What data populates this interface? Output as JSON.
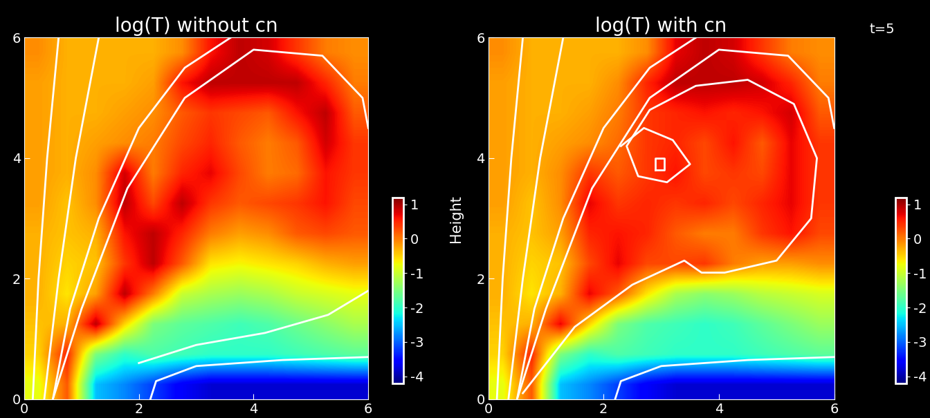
{
  "chart_data": [
    {
      "type": "heatmap",
      "title": "log(T) without cn",
      "x_centers": [
        0.25,
        0.75,
        1.25,
        1.75,
        2.25,
        2.75,
        3.25,
        3.75,
        4.25,
        4.75,
        5.25,
        5.75
      ],
      "y_centers": [
        0.25,
        0.75,
        1.25,
        1.75,
        2.25,
        2.75,
        3.25,
        3.75,
        4.25,
        4.75,
        5.25,
        5.75
      ],
      "cells": [
        [
          -0.8,
          0.2,
          -2.5,
          -2.8,
          -3.2,
          -3.6,
          -3.8,
          -3.8,
          -3.8,
          -3.8,
          -3.8,
          -3.8
        ],
        [
          -0.5,
          0.5,
          -1.5,
          -2.0,
          -1.8,
          -1.9,
          -2.0,
          -2.0,
          -2.0,
          -1.9,
          -1.8,
          -1.7
        ],
        [
          -0.4,
          -0.3,
          0.9,
          -0.5,
          -1.5,
          -1.7,
          -1.8,
          -1.9,
          -1.8,
          -1.6,
          -1.4,
          -1.2
        ],
        [
          -0.3,
          -0.6,
          -0.2,
          0.9,
          0.0,
          -1.0,
          -1.2,
          -1.3,
          -1.2,
          -1.0,
          -0.9,
          -0.8
        ],
        [
          -0.3,
          -0.5,
          -0.4,
          0.4,
          0.9,
          0.2,
          -0.6,
          -0.7,
          -0.6,
          -0.5,
          -0.3,
          -0.2
        ],
        [
          -0.3,
          -0.4,
          -0.3,
          0.6,
          0.9,
          0.5,
          0.0,
          -0.2,
          -0.1,
          0.2,
          0.3,
          0.2
        ],
        [
          -0.2,
          -0.4,
          -0.1,
          0.9,
          0.3,
          0.9,
          0.4,
          0.2,
          0.3,
          0.4,
          0.6,
          0.3
        ],
        [
          -0.2,
          -0.3,
          -0.1,
          0.8,
          0.0,
          0.5,
          0.7,
          0.3,
          0.0,
          0.1,
          0.6,
          0.4
        ],
        [
          -0.2,
          -0.3,
          -0.2,
          -0.1,
          0.0,
          0.3,
          0.5,
          0.2,
          0.0,
          0.2,
          0.8,
          0.4
        ],
        [
          -0.2,
          -0.3,
          -0.3,
          -0.2,
          -0.1,
          0.2,
          0.4,
          0.3,
          0.2,
          0.6,
          0.9,
          0.2
        ],
        [
          -0.2,
          -0.3,
          -0.3,
          -0.3,
          -0.2,
          0.6,
          0.9,
          0.9,
          0.9,
          0.9,
          0.5,
          0.0
        ],
        [
          -0.1,
          -0.3,
          -0.3,
          -0.3,
          -0.3,
          -0.1,
          0.6,
          0.9,
          0.8,
          0.4,
          0.0,
          -0.1
        ]
      ],
      "xlim": [
        0,
        6
      ],
      "ylim": [
        0,
        6
      ],
      "xticks": [
        0,
        2,
        4,
        6
      ],
      "yticks": [
        0,
        2,
        4,
        6
      ],
      "colorbar_range": [
        -4.2,
        1.2
      ],
      "colorbar_ticks": [
        -4,
        -3,
        -2,
        -1,
        0,
        1
      ],
      "grid": false,
      "field_lines": [
        {
          "x": [
            0.15,
            0.25,
            0.4,
            0.6
          ],
          "y": [
            0,
            2,
            4,
            6
          ]
        },
        {
          "x": [
            0.35,
            0.6,
            0.9,
            1.3
          ],
          "y": [
            0,
            2,
            4,
            6
          ]
        },
        {
          "x": [
            0.5,
            0.8,
            1.3,
            2.0,
            2.8,
            3.6
          ],
          "y": [
            0,
            1.5,
            3,
            4.5,
            5.5,
            6
          ]
        },
        {
          "x": [
            0.5,
            1.0,
            1.8,
            2.8,
            4.0,
            5.2,
            5.9,
            6.0
          ],
          "y": [
            0,
            1.5,
            3.5,
            5.0,
            5.8,
            5.7,
            5.0,
            4.5
          ]
        },
        {
          "x": [
            2.2,
            2.3,
            3.0,
            4.5,
            6.0
          ],
          "y": [
            0,
            0.3,
            0.55,
            0.65,
            0.7
          ]
        },
        {
          "x": [
            2.0,
            3.0,
            4.2,
            5.3,
            6.0
          ],
          "y": [
            0.6,
            0.9,
            1.1,
            1.4,
            1.8
          ]
        }
      ]
    },
    {
      "type": "heatmap",
      "title": "log(T) with cn",
      "ylabel": "Height",
      "annotations": [
        "t=5"
      ],
      "x_centers": [
        0.25,
        0.75,
        1.25,
        1.75,
        2.25,
        2.75,
        3.25,
        3.75,
        4.25,
        4.75,
        5.25,
        5.75
      ],
      "y_centers": [
        0.25,
        0.75,
        1.25,
        1.75,
        2.25,
        2.75,
        3.25,
        3.75,
        4.25,
        4.75,
        5.25,
        5.75
      ],
      "cells": [
        [
          -0.8,
          0.2,
          -2.5,
          -2.8,
          -3.2,
          -3.6,
          -3.8,
          -3.8,
          -3.8,
          -3.8,
          -3.8,
          -3.8
        ],
        [
          -0.5,
          0.5,
          -1.5,
          -2.0,
          -1.8,
          -1.9,
          -2.0,
          -2.0,
          -2.0,
          -1.9,
          -1.8,
          -1.7
        ],
        [
          -0.4,
          -0.3,
          0.7,
          -0.5,
          -1.5,
          -1.8,
          -1.9,
          -2.0,
          -1.9,
          -1.7,
          -1.5,
          -1.3
        ],
        [
          -0.3,
          -0.6,
          -0.3,
          0.7,
          0.2,
          -0.6,
          -1.2,
          -1.4,
          -1.3,
          -1.1,
          -1.0,
          -0.9
        ],
        [
          -0.3,
          -0.5,
          -0.4,
          0.3,
          0.7,
          0.3,
          0.3,
          0.4,
          0.0,
          -0.2,
          -0.2,
          -0.1
        ],
        [
          -0.3,
          -0.4,
          -0.2,
          0.5,
          0.6,
          0.5,
          0.2,
          0.0,
          0.0,
          0.4,
          0.6,
          0.3
        ],
        [
          -0.2,
          -0.4,
          -0.1,
          0.7,
          0.4,
          0.5,
          0.4,
          0.5,
          0.3,
          0.5,
          0.7,
          0.4
        ],
        [
          -0.2,
          -0.3,
          -0.1,
          0.4,
          0.2,
          0.4,
          0.6,
          0.3,
          0.4,
          0.3,
          0.7,
          0.4
        ],
        [
          -0.2,
          -0.3,
          -0.2,
          -0.1,
          0.1,
          0.4,
          0.5,
          0.3,
          0.6,
          0.2,
          0.7,
          0.4
        ],
        [
          -0.2,
          -0.3,
          -0.3,
          -0.2,
          0.0,
          0.4,
          0.5,
          0.6,
          0.5,
          0.6,
          0.8,
          0.2
        ],
        [
          -0.2,
          -0.3,
          -0.3,
          -0.3,
          -0.1,
          0.5,
          0.9,
          0.9,
          0.9,
          0.8,
          0.5,
          0.0
        ],
        [
          -0.1,
          -0.3,
          -0.3,
          -0.3,
          -0.3,
          -0.1,
          0.7,
          0.9,
          0.8,
          0.4,
          0.0,
          -0.1
        ]
      ],
      "xlim": [
        0,
        6
      ],
      "ylim": [
        0,
        6
      ],
      "xticks": [
        0,
        2,
        4,
        6
      ],
      "yticks": [
        0,
        2,
        4,
        6
      ],
      "colorbar_range": [
        -4.2,
        1.2
      ],
      "colorbar_ticks": [
        -4,
        -3,
        -2,
        -1,
        0,
        1
      ],
      "grid": false,
      "field_lines": [
        {
          "x": [
            0.15,
            0.25,
            0.4,
            0.6
          ],
          "y": [
            0,
            2,
            4,
            6
          ]
        },
        {
          "x": [
            0.35,
            0.6,
            0.9,
            1.3
          ],
          "y": [
            0,
            2,
            4,
            6
          ]
        },
        {
          "x": [
            0.5,
            0.8,
            1.3,
            2.0,
            2.8,
            3.6
          ],
          "y": [
            0,
            1.5,
            3,
            4.5,
            5.5,
            6
          ]
        },
        {
          "x": [
            0.5,
            1.0,
            1.8,
            2.8,
            4.0,
            5.2,
            5.9,
            6.0
          ],
          "y": [
            0,
            1.5,
            3.5,
            5.0,
            5.8,
            5.7,
            5.0,
            4.5
          ]
        },
        {
          "x": [
            2.2,
            2.3,
            3.0,
            4.5,
            6.0
          ],
          "y": [
            0,
            0.3,
            0.55,
            0.65,
            0.7
          ]
        },
        {
          "x": [
            0.6,
            1.5,
            2.5,
            3.4,
            3.7,
            4.1,
            5.0,
            5.6,
            5.7,
            5.3,
            4.5,
            3.6,
            2.8,
            2.4,
            2.6,
            3.1,
            3.5,
            3.2,
            2.7,
            2.3
          ],
          "y": [
            0.1,
            1.2,
            1.9,
            2.3,
            2.1,
            2.1,
            2.3,
            3.0,
            4.0,
            4.9,
            5.3,
            5.2,
            4.8,
            4.2,
            3.7,
            3.6,
            3.9,
            4.3,
            4.5,
            4.2
          ]
        },
        {
          "x": [
            2.9,
            3.05,
            3.05,
            2.9,
            2.9
          ],
          "y": [
            3.8,
            3.8,
            4.0,
            4.0,
            3.8
          ]
        }
      ]
    }
  ]
}
